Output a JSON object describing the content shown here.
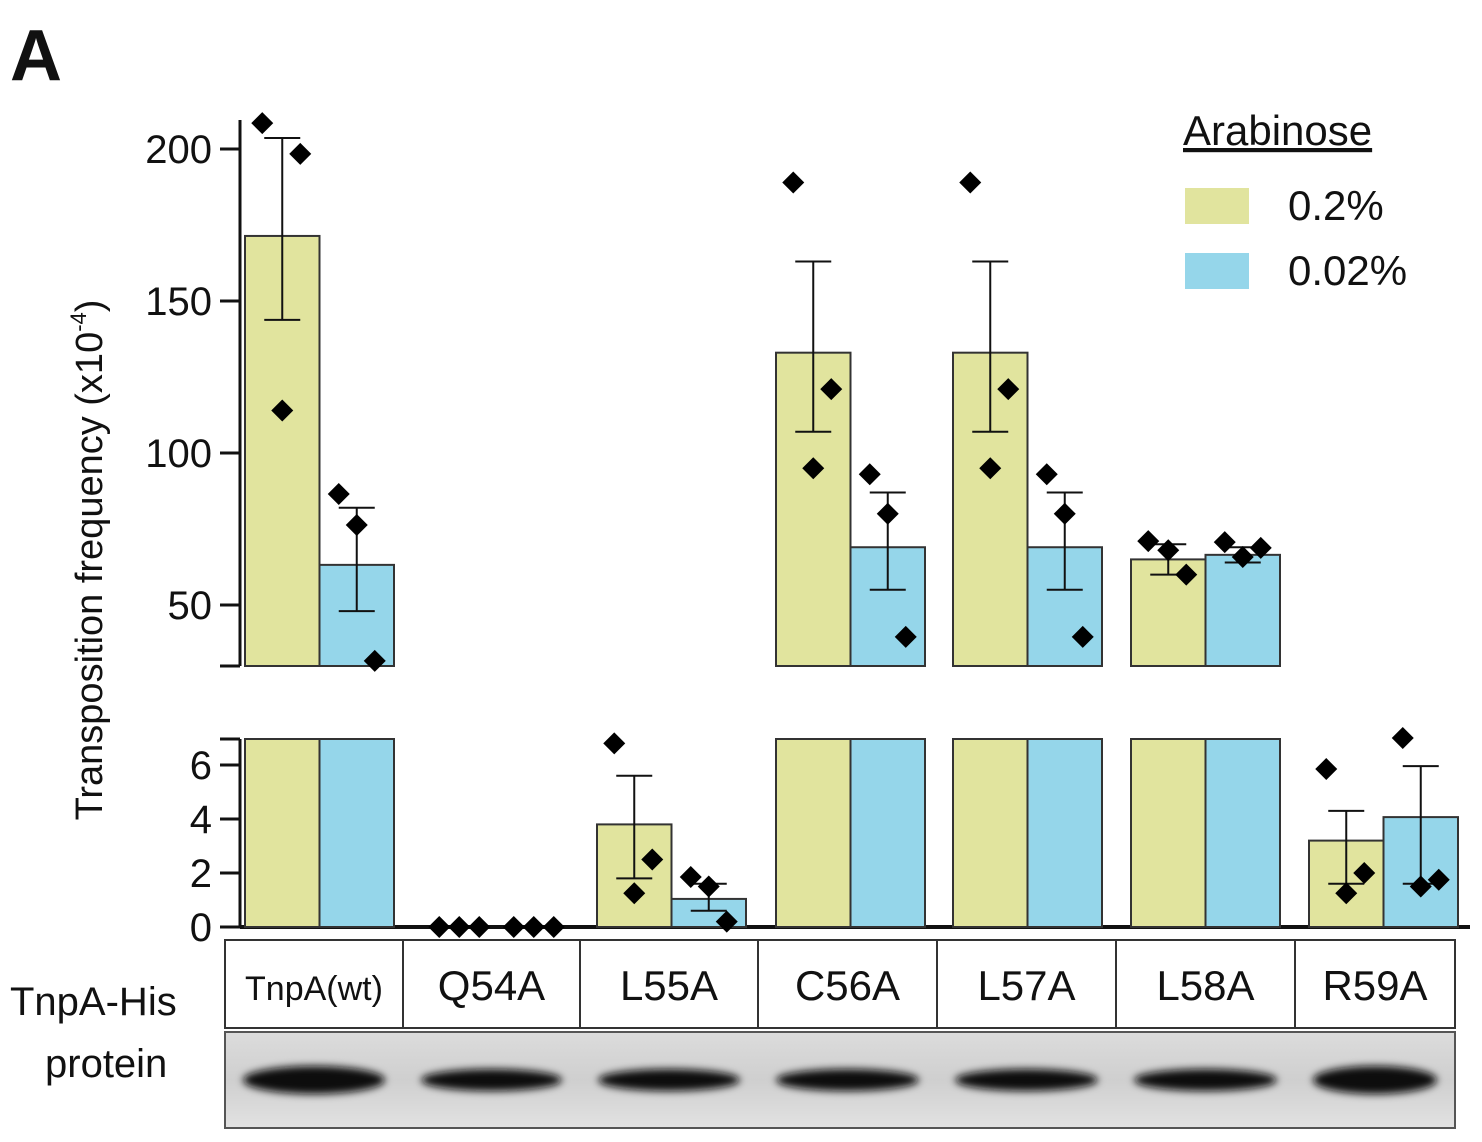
{
  "panel_label": "A",
  "colors": {
    "arabinose_0.2": "#e1e49e",
    "arabinose_0.02": "#95d6ea",
    "points": "#000000"
  },
  "chart_data": {
    "type": "bar",
    "ylabel": "Transposition frequency (x10",
    "ylabel_exp": "-4",
    "ylabel_close": ")",
    "axis_break": true,
    "upper_ylim": [
      30,
      210
    ],
    "upper_ticks": [
      200,
      150,
      100,
      50
    ],
    "lower_ylim": [
      0,
      7
    ],
    "lower_ticks": [
      6,
      4,
      2,
      0
    ],
    "grid": false,
    "legend": {
      "title": "Arabinose",
      "placement": "top-right"
    },
    "categories": [
      "TnpA(wt)",
      "Q54A",
      "L55A",
      "C56A",
      "L57A",
      "L58A",
      "R59A"
    ],
    "series": [
      {
        "name": "0.2%",
        "values": [
          171.4,
          0,
          3.8,
          133,
          133,
          65,
          3.2
        ],
        "err_low": [
          143.8,
          0,
          1.8,
          107,
          107,
          60,
          1.6
        ],
        "err_high": [
          203.6,
          0,
          5.6,
          163,
          163,
          70,
          4.3
        ],
        "points": [
          [
            208.5,
            198.4,
            114
          ],
          [
            0,
            0,
            0
          ],
          [
            6.8,
            2.5,
            1.25
          ],
          [
            189,
            121,
            95
          ],
          [
            189,
            121,
            95
          ],
          [
            71,
            60,
            68
          ],
          [
            5.85,
            2.0,
            1.25
          ]
        ]
      },
      {
        "name": "0.02%",
        "values": [
          63.2,
          0,
          1.04,
          69,
          69,
          66.5,
          4.07
        ],
        "err_low": [
          48,
          0,
          0.6,
          55,
          55,
          64,
          1.6
        ],
        "err_high": [
          82,
          0,
          1.6,
          87,
          87,
          69,
          5.96
        ],
        "points": [
          [
            86.5,
            76.3,
            31.6
          ],
          [
            0,
            0,
            0
          ],
          [
            1.85,
            1.5,
            0.2
          ],
          [
            93,
            80,
            39.5
          ],
          [
            93,
            80,
            39.5
          ],
          [
            70.7,
            65.8,
            68.8
          ],
          [
            7.0,
            1.5,
            1.75
          ]
        ]
      }
    ]
  },
  "table": {
    "row_label_1": "TnpA-His",
    "row_label_2": "protein"
  }
}
